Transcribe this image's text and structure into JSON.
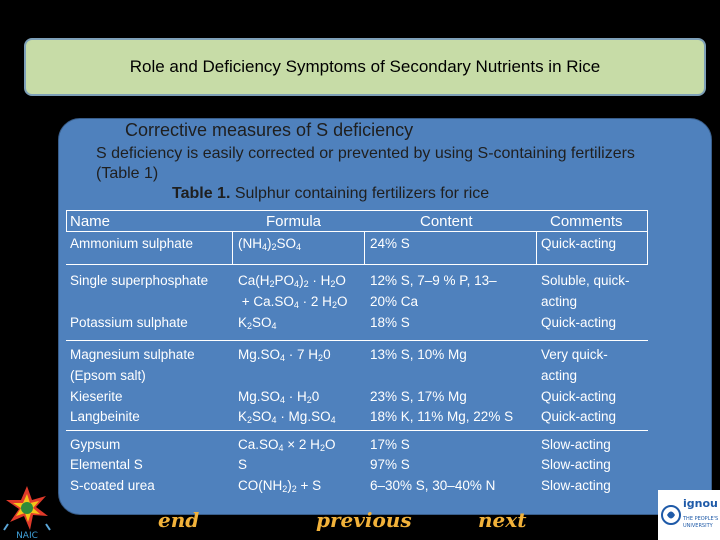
{
  "title": "Role and Deficiency Symptoms of Secondary Nutrients in Rice",
  "subtitle": "Corrective measures of S deficiency",
  "intro": "S deficiency is easily corrected or prevented by using S-containing fertilizers (Table 1)",
  "table_caption": {
    "label": "Table 1.",
    "text": "Sulphur containing fertilizers for rice"
  },
  "table": {
    "headers": [
      "Name",
      "Formula",
      "Content",
      "Comments"
    ],
    "rows": [
      {
        "name": "Ammonium sulphate",
        "formula": "(NH4)2SO4",
        "content": "24% S",
        "comment": "Quick-acting"
      },
      {
        "name": "Single superphosphate",
        "formula": "Ca(H2PO4)2 · H2O + Ca.SO4 · 2 H2O",
        "content": "12% S, 7–9 % P, 13– 20% Ca",
        "comment": "Soluble, quick- acting"
      },
      {
        "name": "Potassium sulphate",
        "formula": "K2SO4",
        "content": "18% S",
        "comment": "Quick-acting"
      },
      {
        "name": "Magnesium sulphate (Epsom salt)",
        "formula": "Mg.SO4 · 7 H20",
        "content": "13% S, 10% Mg",
        "comment": "Very quick- acting"
      },
      {
        "name": "Kieserite",
        "formula": "Mg.SO4 · H20",
        "content": "23% S, 17% Mg",
        "comment": "Quick-acting"
      },
      {
        "name": "Langbeinite",
        "formula": "K2SO4 · Mg.SO4",
        "content": "18% K, 11% Mg, 22% S",
        "comment": "Quick-acting"
      },
      {
        "name": "Gypsum",
        "formula": "Ca.SO4 × 2 H2O",
        "content": "17% S",
        "comment": "Slow-acting"
      },
      {
        "name": "Elemental S",
        "formula": "S",
        "content": "97% S",
        "comment": "Slow-acting"
      },
      {
        "name": "S-coated urea",
        "formula": "CO(NH2)2 + S",
        "content": "6–30% S, 30–40% N",
        "comment": "Slow-acting"
      }
    ]
  },
  "nav": {
    "end": "end",
    "previous": "previous",
    "next": "next"
  },
  "logos": {
    "left_text": "NAIC",
    "right_name": "ignou",
    "right_tagline_1": "THE PEOPLE'S",
    "right_tagline_2": "UNIVERSITY"
  },
  "colors": {
    "panel": "#4f81bd",
    "title_bar": "#c7dca7",
    "nav_text": "#f2b23a"
  }
}
